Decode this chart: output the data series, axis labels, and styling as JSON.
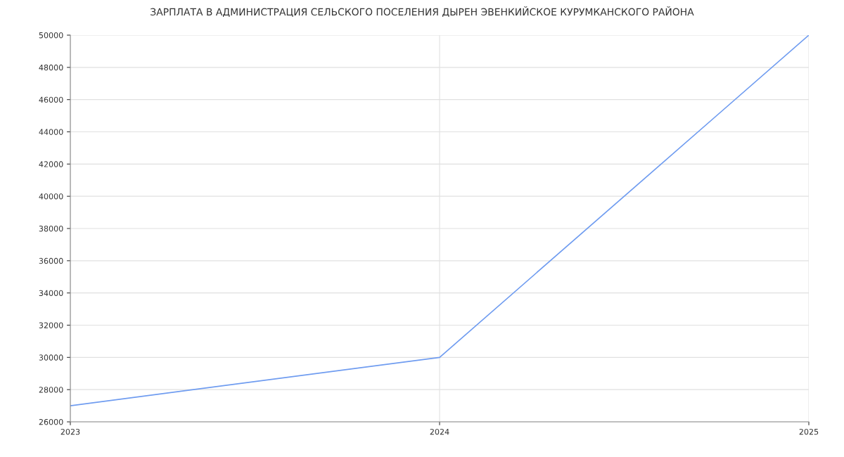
{
  "chart_data": {
    "type": "line",
    "title": "ЗАРПЛАТА В АДМИНИСТРАЦИЯ СЕЛЬСКОГО ПОСЕЛЕНИЯ ДЫРЕН ЭВЕНКИЙСКОЕ КУРУМКАНСКОГО РАЙОНА",
    "categories": [
      "2023",
      "2024",
      "2025"
    ],
    "series": [
      {
        "color": "#6f9cf0",
        "values": [
          27000,
          30000,
          50000
        ]
      }
    ],
    "ylim": [
      26000,
      50000
    ],
    "yticks": [
      26000,
      28000,
      30000,
      32000,
      34000,
      36000,
      38000,
      40000,
      42000,
      44000,
      46000,
      48000,
      50000
    ],
    "grid": true,
    "marker": "none",
    "line_style": "solid"
  }
}
